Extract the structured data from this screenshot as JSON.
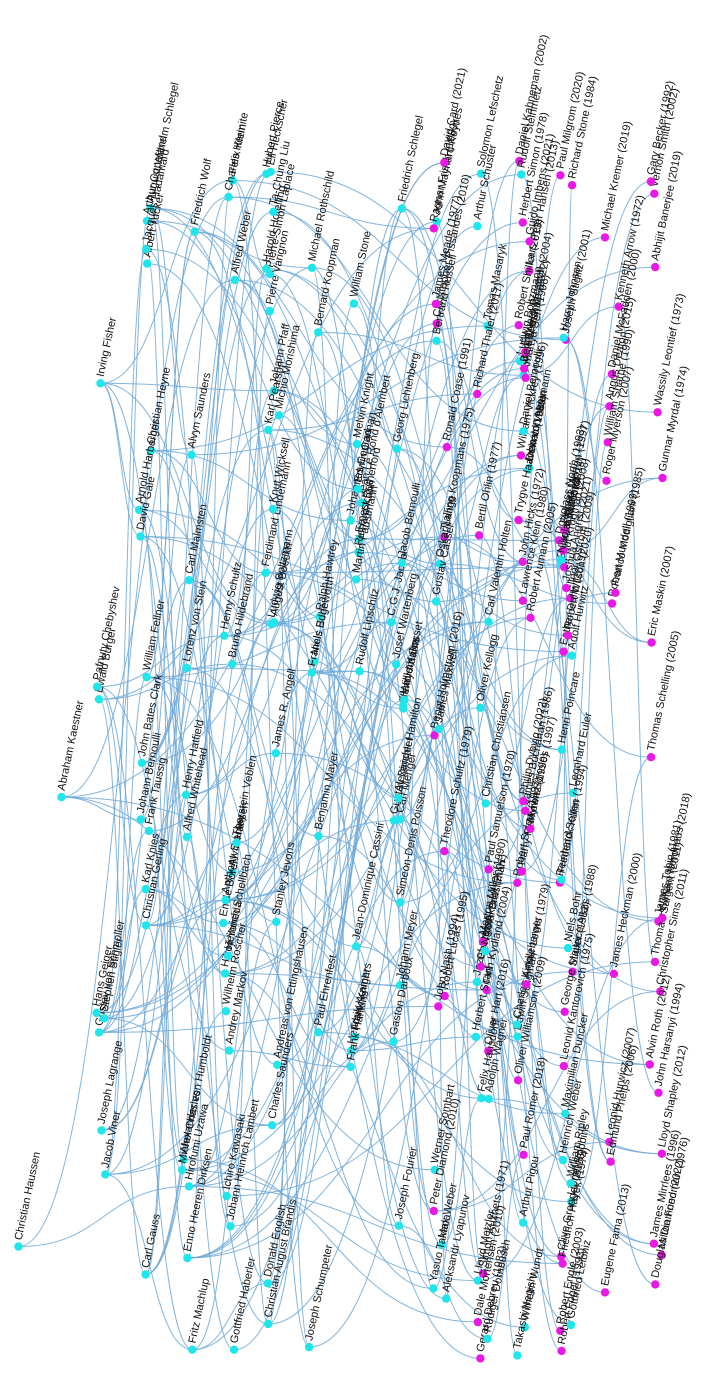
{
  "diagram": {
    "colors": {
      "edge": "#6fa8d6",
      "node_person": "#1ee6ea",
      "node_laureate": "#ea18e4",
      "label": "#111111"
    },
    "nodes": [
      {
        "label": "Christian Haussen",
        "kind": "person"
      },
      {
        "label": "Abraham Kaestner",
        "kind": "person"
      },
      {
        "label": "Georg Lichtenberg",
        "kind": "person"
      },
      {
        "label": "Johann Pfaff",
        "kind": "person"
      },
      {
        "label": "Carl Gauss",
        "kind": "person"
      },
      {
        "label": "Christian Gerling",
        "kind": "person"
      },
      {
        "label": "Jean Le Rond d'Alembert",
        "kind": "person"
      },
      {
        "label": "Pierre-Simon Laplace",
        "kind": "person"
      },
      {
        "label": "Simeon-Denis Poisson",
        "kind": "person"
      },
      {
        "label": "Joseph Fourier",
        "kind": "person"
      },
      {
        "label": "Gustav Dirichlet",
        "kind": "person"
      },
      {
        "label": "Pierre Varignon",
        "kind": "person"
      },
      {
        "label": "Johann Bernoulli",
        "kind": "person"
      },
      {
        "label": "Leonhard Euler",
        "kind": "person"
      },
      {
        "label": "Joseph Lagrange",
        "kind": "person"
      },
      {
        "label": "Benjamin Mayer",
        "kind": "person"
      },
      {
        "label": "Johann Meyer",
        "kind": "person"
      },
      {
        "label": "Enno Heeren Dirksen",
        "kind": "person"
      },
      {
        "label": "Wilhelm Wundt",
        "kind": "person"
      },
      {
        "label": "Tomas Masaryk",
        "kind": "person"
      },
      {
        "label": "C.G.J. Jacobi",
        "kind": "person"
      },
      {
        "label": "Lorenz von Stein",
        "kind": "person"
      },
      {
        "label": "Rudolf Lipschitz",
        "kind": "person"
      },
      {
        "label": "Felix Klein",
        "kind": "person"
      },
      {
        "label": "Carl Menger",
        "kind": "person"
      },
      {
        "label": "Johannes Conrad",
        "kind": "person"
      },
      {
        "label": "Alfred Marshall",
        "kind": "person"
      },
      {
        "label": "Christian Heyne",
        "kind": "person"
      },
      {
        "label": "Christian August Brandis",
        "kind": "person"
      },
      {
        "label": "Friedrich Schlegel",
        "kind": "person"
      },
      {
        "label": "Felix Papencordt",
        "kind": "person"
      },
      {
        "label": "Maximilian Duncker",
        "kind": "person"
      },
      {
        "label": "Bruno Hildebrand",
        "kind": "person"
      },
      {
        "label": "Friedrich Wolf",
        "kind": "person"
      },
      {
        "label": "Karl Knies",
        "kind": "person"
      },
      {
        "label": "Wilhelm Roscher",
        "kind": "person"
      },
      {
        "label": "August Boeckh",
        "kind": "person"
      },
      {
        "label": "Gustav von Schmoller",
        "kind": "person"
      },
      {
        "label": "Werner Sombart",
        "kind": "person"
      },
      {
        "label": "Max Weber",
        "kind": "person"
      },
      {
        "label": "Alexander Hamilton",
        "kind": "person"
      },
      {
        "label": "August Wilhelm Schlegel",
        "kind": "person"
      },
      {
        "label": "Alexander von Humboldt",
        "kind": "person"
      },
      {
        "label": "Jean-Dominique Cassini",
        "kind": "person"
      },
      {
        "label": "Edwin Cannan",
        "kind": "person"
      },
      {
        "label": "John Bates Clark",
        "kind": "person"
      },
      {
        "label": "Lionel Robbins",
        "kind": "person"
      },
      {
        "label": "Arthur Pigou",
        "kind": "person"
      },
      {
        "label": "John Maynard Keynes",
        "kind": "person"
      },
      {
        "label": "Joseph Schumpeter",
        "kind": "person"
      },
      {
        "label": "Andreas von Ettingshausen",
        "kind": "person"
      },
      {
        "label": "Jozef Stefan",
        "kind": "person"
      },
      {
        "label": "Ludwig Boltzmann",
        "kind": "person"
      },
      {
        "label": "Niels Bohr",
        "kind": "person"
      },
      {
        "label": "Ernest Rutherford",
        "kind": "person"
      },
      {
        "label": "Hendrik Kramers",
        "kind": "person"
      },
      {
        "label": "Tjalling Koopmans (1975)",
        "kind": "laureate"
      },
      {
        "label": "Irving Fisher",
        "kind": "person"
      },
      {
        "label": "Paul Samuelson (1970)",
        "kind": "laureate"
      },
      {
        "label": "Robert Solow (1987)",
        "kind": "laureate"
      },
      {
        "label": "Kenneth Arrow (1972)",
        "kind": "laureate"
      },
      {
        "label": "Milton Friedman (1976)",
        "kind": "laureate"
      },
      {
        "label": "Wassily Leontief (1973)",
        "kind": "laureate"
      },
      {
        "label": "Simon Kuznets (1971)",
        "kind": "laureate"
      },
      {
        "label": "Lawrence Klein (1980)",
        "kind": "laureate"
      },
      {
        "label": "James Tobin (1981)",
        "kind": "laureate"
      },
      {
        "label": "Robert Lucas (1995)",
        "kind": "laureate"
      },
      {
        "label": "Amartya Sen (1998)",
        "kind": "laureate"
      },
      {
        "label": "George Akerlof (2001)",
        "kind": "laureate"
      },
      {
        "label": "Joseph Stiglitz (2001)",
        "kind": "laureate"
      },
      {
        "label": "Thomas Sargent (2011)",
        "kind": "laureate"
      },
      {
        "label": "Eric Maskin (2007)",
        "kind": "laureate"
      },
      {
        "label": "Paul Romer (2018)",
        "kind": "laureate"
      },
      {
        "label": "Leonid Hurwicz (2007)",
        "kind": "laureate"
      },
      {
        "label": "Daniel McFadden (2000)",
        "kind": "laureate"
      },
      {
        "label": "Daniel Kahneman (2002)",
        "kind": "laureate"
      },
      {
        "label": "Lars Peter Hansen (2013)",
        "kind": "laureate"
      },
      {
        "label": "Christopher Sims (2011)",
        "kind": "laureate"
      },
      {
        "label": "James Heckman (2000)",
        "kind": "laureate"
      },
      {
        "label": "Oliver Hart (2016)",
        "kind": "laureate"
      },
      {
        "label": "Ragnar Frisch (1969)",
        "kind": "laureate"
      },
      {
        "label": "Richard Stone (1984)",
        "kind": "laureate"
      },
      {
        "label": "John Hicks (1972)",
        "kind": "laureate"
      },
      {
        "label": "Paul Krugman (2008)",
        "kind": "laureate"
      },
      {
        "label": "Robert Engle (2003)",
        "kind": "laureate"
      },
      {
        "label": "Edward Prescott (2004)",
        "kind": "laureate"
      },
      {
        "label": "Finn Kydland (2004)",
        "kind": "laureate"
      },
      {
        "label": "Jean Tirole (2014)",
        "kind": "laureate"
      },
      {
        "label": "William Nordhaus (2018)",
        "kind": "laureate"
      },
      {
        "label": "Angus Deaton (2015)",
        "kind": "laureate"
      },
      {
        "label": "James Mirrlees (1996)",
        "kind": "laureate"
      },
      {
        "label": "Christopher Pissarides (2010)",
        "kind": "laureate"
      },
      {
        "label": "James Meade (1977)",
        "kind": "laureate"
      },
      {
        "label": "Peter Diamond (2010)",
        "kind": "laureate"
      },
      {
        "label": "Vernon Smith (2002)",
        "kind": "laureate"
      },
      {
        "label": "Alfred Whitehead",
        "kind": "person"
      },
      {
        "label": "Bertrand Russell",
        "kind": "person"
      },
      {
        "label": "Henry Adams",
        "kind": "person"
      },
      {
        "label": "William Stone",
        "kind": "person"
      },
      {
        "label": "Solomon Lefschetz",
        "kind": "person"
      },
      {
        "label": "Frank Knight",
        "kind": "person"
      },
      {
        "label": "Jacob Viner",
        "kind": "person"
      },
      {
        "label": "Harold Hotelling",
        "kind": "person"
      },
      {
        "label": "Michio Morishima",
        "kind": "person"
      },
      {
        "label": "Oskar Lange",
        "kind": "person"
      },
      {
        "label": "Gottfried Haberler",
        "kind": "person"
      },
      {
        "label": "Alvin Hansen",
        "kind": "person"
      },
      {
        "label": "Carl Malmsten",
        "kind": "person"
      },
      {
        "label": "Lloyd Metzler",
        "kind": "person"
      },
      {
        "label": "Arnold Harberger",
        "kind": "person"
      },
      {
        "label": "Henry Schultz",
        "kind": "person"
      },
      {
        "label": "Edwin Seligman",
        "kind": "person"
      },
      {
        "label": "Oliver Kellogg",
        "kind": "person"
      },
      {
        "label": "Charles Kindleberger",
        "kind": "person"
      },
      {
        "label": "Fritz Machlup",
        "kind": "person"
      },
      {
        "label": "Ewald Burger",
        "kind": "person"
      },
      {
        "label": "Reinhard Selten (1994)",
        "kind": "laureate"
      },
      {
        "label": "Leonid Kantorovich (1975)",
        "kind": "laureate"
      },
      {
        "label": "Niels Bohr",
        "kind": "person"
      },
      {
        "label": "Hans Geiger",
        "kind": "person"
      },
      {
        "label": "Arthur Schuster",
        "kind": "person"
      },
      {
        "label": "Carl Valentin Holten",
        "kind": "person"
      },
      {
        "label": "Christian Christiansen",
        "kind": "person"
      },
      {
        "label": "Paul Ehrenfest",
        "kind": "person"
      },
      {
        "label": "James R. Angell",
        "kind": "person"
      },
      {
        "label": "Frank Hankins",
        "kind": "person"
      },
      {
        "label": "Melvin Knight",
        "kind": "person"
      },
      {
        "label": "Robert Mundell (1999)",
        "kind": "laureate"
      },
      {
        "label": "Gerard Debreu (1983)",
        "kind": "laureate"
      },
      {
        "label": "William Vickrey (1996)",
        "kind": "laureate"
      },
      {
        "label": "Douglass North (1993)",
        "kind": "laureate"
      },
      {
        "label": "Robert Fogel (1993)",
        "kind": "laureate"
      },
      {
        "label": "John Nash (1994)",
        "kind": "laureate"
      },
      {
        "label": "Gary Becker (1992)",
        "kind": "laureate"
      },
      {
        "label": "Rudolf Steinmetz",
        "kind": "person"
      },
      {
        "label": "Alfred Weber",
        "kind": "person"
      },
      {
        "label": "Heinrich Weber",
        "kind": "person"
      },
      {
        "label": "Ferdinand Lindemann",
        "kind": "person"
      },
      {
        "label": "Adolf Hurwitz",
        "kind": "person"
      },
      {
        "label": "Felix Hausdorff",
        "kind": "person"
      },
      {
        "label": "William Fellner",
        "kind": "person"
      },
      {
        "label": "Oswald Veblen",
        "kind": "person"
      },
      {
        "label": "John von Neumann",
        "kind": "person"
      },
      {
        "label": "Albert Tucker",
        "kind": "person"
      },
      {
        "label": "Harold Kuhn",
        "kind": "person"
      },
      {
        "label": "David Gale",
        "kind": "person"
      },
      {
        "label": "Lloyd Shapley (2012)",
        "kind": "laureate"
      },
      {
        "label": "Alvin Roth (2012)",
        "kind": "laureate"
      },
      {
        "label": "Ta-Chung Liu",
        "kind": "person"
      },
      {
        "label": "Henry Hatfield",
        "kind": "person"
      },
      {
        "label": "Donald English",
        "kind": "person"
      },
      {
        "label": "Rudiger Dornbusch",
        "kind": "person"
      },
      {
        "label": "Michael Rothschild",
        "kind": "person"
      },
      {
        "label": "Oliver Williamson (2009)",
        "kind": "laureate"
      },
      {
        "label": "Ronald Coase (1991)",
        "kind": "laureate"
      },
      {
        "label": "Harry Johnson",
        "kind": "person"
      },
      {
        "label": "Bengt Holmstrom (2016)",
        "kind": "laureate"
      },
      {
        "label": "Bernard Koopman",
        "kind": "person"
      },
      {
        "label": "Franco Modigliani (1985)",
        "kind": "laureate"
      },
      {
        "label": "Merton Miller (1990)",
        "kind": "laureate"
      },
      {
        "label": "Harry Markowitz (1990)",
        "kind": "laureate"
      },
      {
        "label": "William Sharpe (1990)",
        "kind": "laureate"
      },
      {
        "label": "Myron Scholes (1997)",
        "kind": "laureate"
      },
      {
        "label": "Robert Merton (1997)",
        "kind": "laureate"
      },
      {
        "label": "Eugene Fama (2013)",
        "kind": "laureate"
      },
      {
        "label": "Robert Shiller (2013)",
        "kind": "laureate"
      },
      {
        "label": "Clive Granger (2003)",
        "kind": "laureate"
      },
      {
        "label": "Dale Mortensen (2010)",
        "kind": "laureate"
      },
      {
        "label": "Herbert Simon (1978)",
        "kind": "laureate"
      },
      {
        "label": "Maurice Allais (1988)",
        "kind": "laureate"
      },
      {
        "label": "Trygve Haavelmo (1989)",
        "kind": "laureate"
      },
      {
        "label": "Gunnar Myrdal (1974)",
        "kind": "laureate"
      },
      {
        "label": "Friedrich Hayek (1974)",
        "kind": "laureate"
      },
      {
        "label": "Bertil Ohlin (1977)",
        "kind": "laureate"
      },
      {
        "label": "Theodore Schultz (1979)",
        "kind": "laureate"
      },
      {
        "label": "Arthur Lewis (1979)",
        "kind": "laureate"
      },
      {
        "label": "George Stigler (1982)",
        "kind": "laureate"
      },
      {
        "label": "James Buchanan (1986)",
        "kind": "laureate"
      },
      {
        "label": "John Harsanyi (1994)",
        "kind": "laureate"
      },
      {
        "label": "Robert Aumann (2005)",
        "kind": "laureate"
      },
      {
        "label": "Thomas Schelling (2005)",
        "kind": "laureate"
      },
      {
        "label": "Edmund Phelps (2006)",
        "kind": "laureate"
      },
      {
        "label": "Roger Myerson (2007)",
        "kind": "laureate"
      },
      {
        "label": "Elinor Ostrom (2009)",
        "kind": "laureate"
      },
      {
        "label": "Richard Thaler (2017)",
        "kind": "laureate"
      },
      {
        "label": "Esther Duflo (2019)",
        "kind": "laureate"
      },
      {
        "label": "Abhijit Banerjee (2019)",
        "kind": "laureate"
      },
      {
        "label": "Michael Kremer (2019)",
        "kind": "laureate"
      },
      {
        "label": "Paul Milgrom (2020)",
        "kind": "laureate"
      },
      {
        "label": "Robert Wilson (2020)",
        "kind": "laureate"
      },
      {
        "label": "David Card (2021)",
        "kind": "laureate"
      },
      {
        "label": "Joshua Angrist (2021)",
        "kind": "laureate"
      },
      {
        "label": "Guido Imbens (2021)",
        "kind": "laureate"
      },
      {
        "label": "Ben Bernanke (2022)",
        "kind": "laureate"
      },
      {
        "label": "Douglas Diamond (2022)",
        "kind": "laureate"
      },
      {
        "label": "Philip Dybvig (2022)",
        "kind": "laureate"
      },
      {
        "label": "Takashi Negishi",
        "kind": "person"
      },
      {
        "label": "Yasuo Takada",
        "kind": "person"
      },
      {
        "label": "Hirofumi Uzawa",
        "kind": "person"
      },
      {
        "label": "Ichiro Kawasaki",
        "kind": "person"
      },
      {
        "label": "Hikoji Yoneda",
        "kind": "person"
      },
      {
        "label": "Charles Saunders",
        "kind": "person"
      },
      {
        "label": "Alvyn Saunders",
        "kind": "person"
      },
      {
        "label": "Nikolai Brashman",
        "kind": "person"
      },
      {
        "label": "Pafnuty Chebyshev",
        "kind": "person"
      },
      {
        "label": "Aleksandr Lyapunov",
        "kind": "person"
      },
      {
        "label": "Andrey Markov",
        "kind": "person"
      },
      {
        "label": "Arthur Copeland",
        "kind": "person"
      },
      {
        "label": "Nikolai Kummer",
        "kind": "person"
      },
      {
        "label": "Heinrich Schellbach",
        "kind": "person"
      },
      {
        "label": "Frederick Kuhn",
        "kind": "person"
      },
      {
        "label": "William Ripley",
        "kind": "person"
      },
      {
        "label": "Gustav Cassel",
        "kind": "person"
      },
      {
        "label": "Knut Wicksell",
        "kind": "person"
      },
      {
        "label": "Eli Heckscher",
        "kind": "person"
      },
      {
        "label": "Karl Pearson",
        "kind": "person"
      },
      {
        "label": "Adolph Wagner",
        "kind": "person"
      },
      {
        "label": "Ludwig Boltzmann",
        "kind": "person"
      },
      {
        "label": "Henri Poincare",
        "kind": "person"
      },
      {
        "label": "Charles Hermite",
        "kind": "person"
      },
      {
        "label": "Gaston Darboux",
        "kind": "person"
      },
      {
        "label": "Emile Borel",
        "kind": "person"
      },
      {
        "label": "Michel Chasles",
        "kind": "person"
      },
      {
        "label": "Jacques Hadamard",
        "kind": "person"
      },
      {
        "label": "Hubert Pierce",
        "kind": "person"
      },
      {
        "label": "Richard Kahn",
        "kind": "person"
      },
      {
        "label": "Ralph Hawtrey",
        "kind": "person"
      },
      {
        "label": "Stanley Jevons",
        "kind": "person"
      },
      {
        "label": "Anthony Stanley",
        "kind": "person"
      },
      {
        "label": "Francis Edgeworth",
        "kind": "person"
      },
      {
        "label": "James Maxwell",
        "kind": "person"
      },
      {
        "label": "Gottfried Leibniz",
        "kind": "person"
      },
      {
        "label": "Martin Faustmann",
        "kind": "person"
      },
      {
        "label": "Frank Taussig",
        "kind": "person"
      },
      {
        "label": "Thorstein Veblen",
        "kind": "person"
      },
      {
        "label": "Stephen Stigler",
        "kind": "person"
      },
      {
        "label": "Herbert Scarf",
        "kind": "person"
      },
      {
        "label": "Josef Wartenberg",
        "kind": "person"
      },
      {
        "label": "Daniel Bernoulli",
        "kind": "person"
      },
      {
        "label": "Jacob Bernoulli",
        "kind": "person"
      },
      {
        "label": "Johann Heinrich Lambert",
        "kind": "person"
      },
      {
        "label": "William Gosset",
        "kind": "person"
      }
    ]
  }
}
